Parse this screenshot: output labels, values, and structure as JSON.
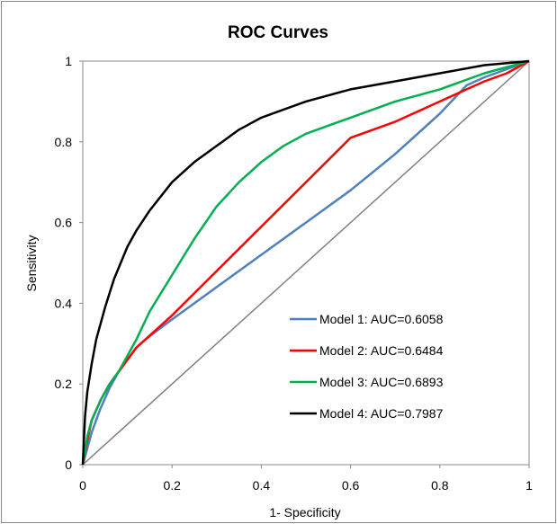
{
  "chart_data": {
    "type": "line",
    "title": "ROC Curves",
    "xlabel": "1- Specificity",
    "ylabel": "Sensitivity",
    "xlim": [
      0,
      1
    ],
    "ylim": [
      0,
      1
    ],
    "xticks": [
      "0",
      "0.2",
      "0.4",
      "0.6",
      "0.8",
      "1"
    ],
    "yticks": [
      "0",
      "0.2",
      "0.4",
      "0.6",
      "0.8",
      "1"
    ],
    "grid": false,
    "legend_position": "bottom-right",
    "reference_line": {
      "x": [
        0,
        1
      ],
      "y": [
        0,
        1
      ],
      "color": "#808080"
    },
    "series": [
      {
        "name": "Model 1: AUC=0.6058",
        "color": "#4f81bd",
        "x": [
          0,
          0.01,
          0.02,
          0.04,
          0.06,
          0.08,
          0.1,
          0.12,
          0.14,
          0.2,
          0.3,
          0.4,
          0.5,
          0.6,
          0.7,
          0.8,
          0.86,
          0.9,
          0.95,
          1
        ],
        "y": [
          0,
          0.04,
          0.08,
          0.14,
          0.19,
          0.23,
          0.26,
          0.29,
          0.31,
          0.36,
          0.44,
          0.52,
          0.6,
          0.68,
          0.77,
          0.87,
          0.94,
          0.96,
          0.98,
          1
        ]
      },
      {
        "name": "Model 2: AUC=0.6484",
        "color": "#ff0000",
        "x": [
          0,
          0.01,
          0.02,
          0.04,
          0.06,
          0.08,
          0.1,
          0.12,
          0.15,
          0.2,
          0.3,
          0.4,
          0.5,
          0.6,
          0.7,
          0.8,
          0.86,
          0.9,
          0.95,
          1
        ],
        "y": [
          0,
          0.06,
          0.11,
          0.16,
          0.2,
          0.23,
          0.26,
          0.29,
          0.32,
          0.37,
          0.48,
          0.59,
          0.7,
          0.81,
          0.85,
          0.9,
          0.93,
          0.95,
          0.97,
          1
        ]
      },
      {
        "name": "Model 3: AUC=0.6893",
        "color": "#00b050",
        "x": [
          0,
          0.01,
          0.02,
          0.04,
          0.06,
          0.08,
          0.1,
          0.12,
          0.15,
          0.2,
          0.25,
          0.3,
          0.35,
          0.4,
          0.45,
          0.5,
          0.55,
          0.6,
          0.7,
          0.8,
          0.9,
          1
        ],
        "y": [
          0,
          0.07,
          0.11,
          0.16,
          0.2,
          0.23,
          0.27,
          0.31,
          0.38,
          0.47,
          0.56,
          0.64,
          0.7,
          0.75,
          0.79,
          0.82,
          0.84,
          0.86,
          0.9,
          0.93,
          0.97,
          1
        ]
      },
      {
        "name": "Model 4: AUC=0.7987",
        "color": "#000000",
        "x": [
          0,
          0.005,
          0.01,
          0.02,
          0.03,
          0.05,
          0.07,
          0.1,
          0.12,
          0.15,
          0.2,
          0.25,
          0.3,
          0.35,
          0.4,
          0.5,
          0.6,
          0.7,
          0.8,
          0.9,
          1
        ],
        "y": [
          0,
          0.12,
          0.18,
          0.25,
          0.31,
          0.39,
          0.46,
          0.54,
          0.58,
          0.63,
          0.7,
          0.75,
          0.79,
          0.83,
          0.86,
          0.9,
          0.93,
          0.95,
          0.97,
          0.99,
          1
        ]
      }
    ]
  }
}
